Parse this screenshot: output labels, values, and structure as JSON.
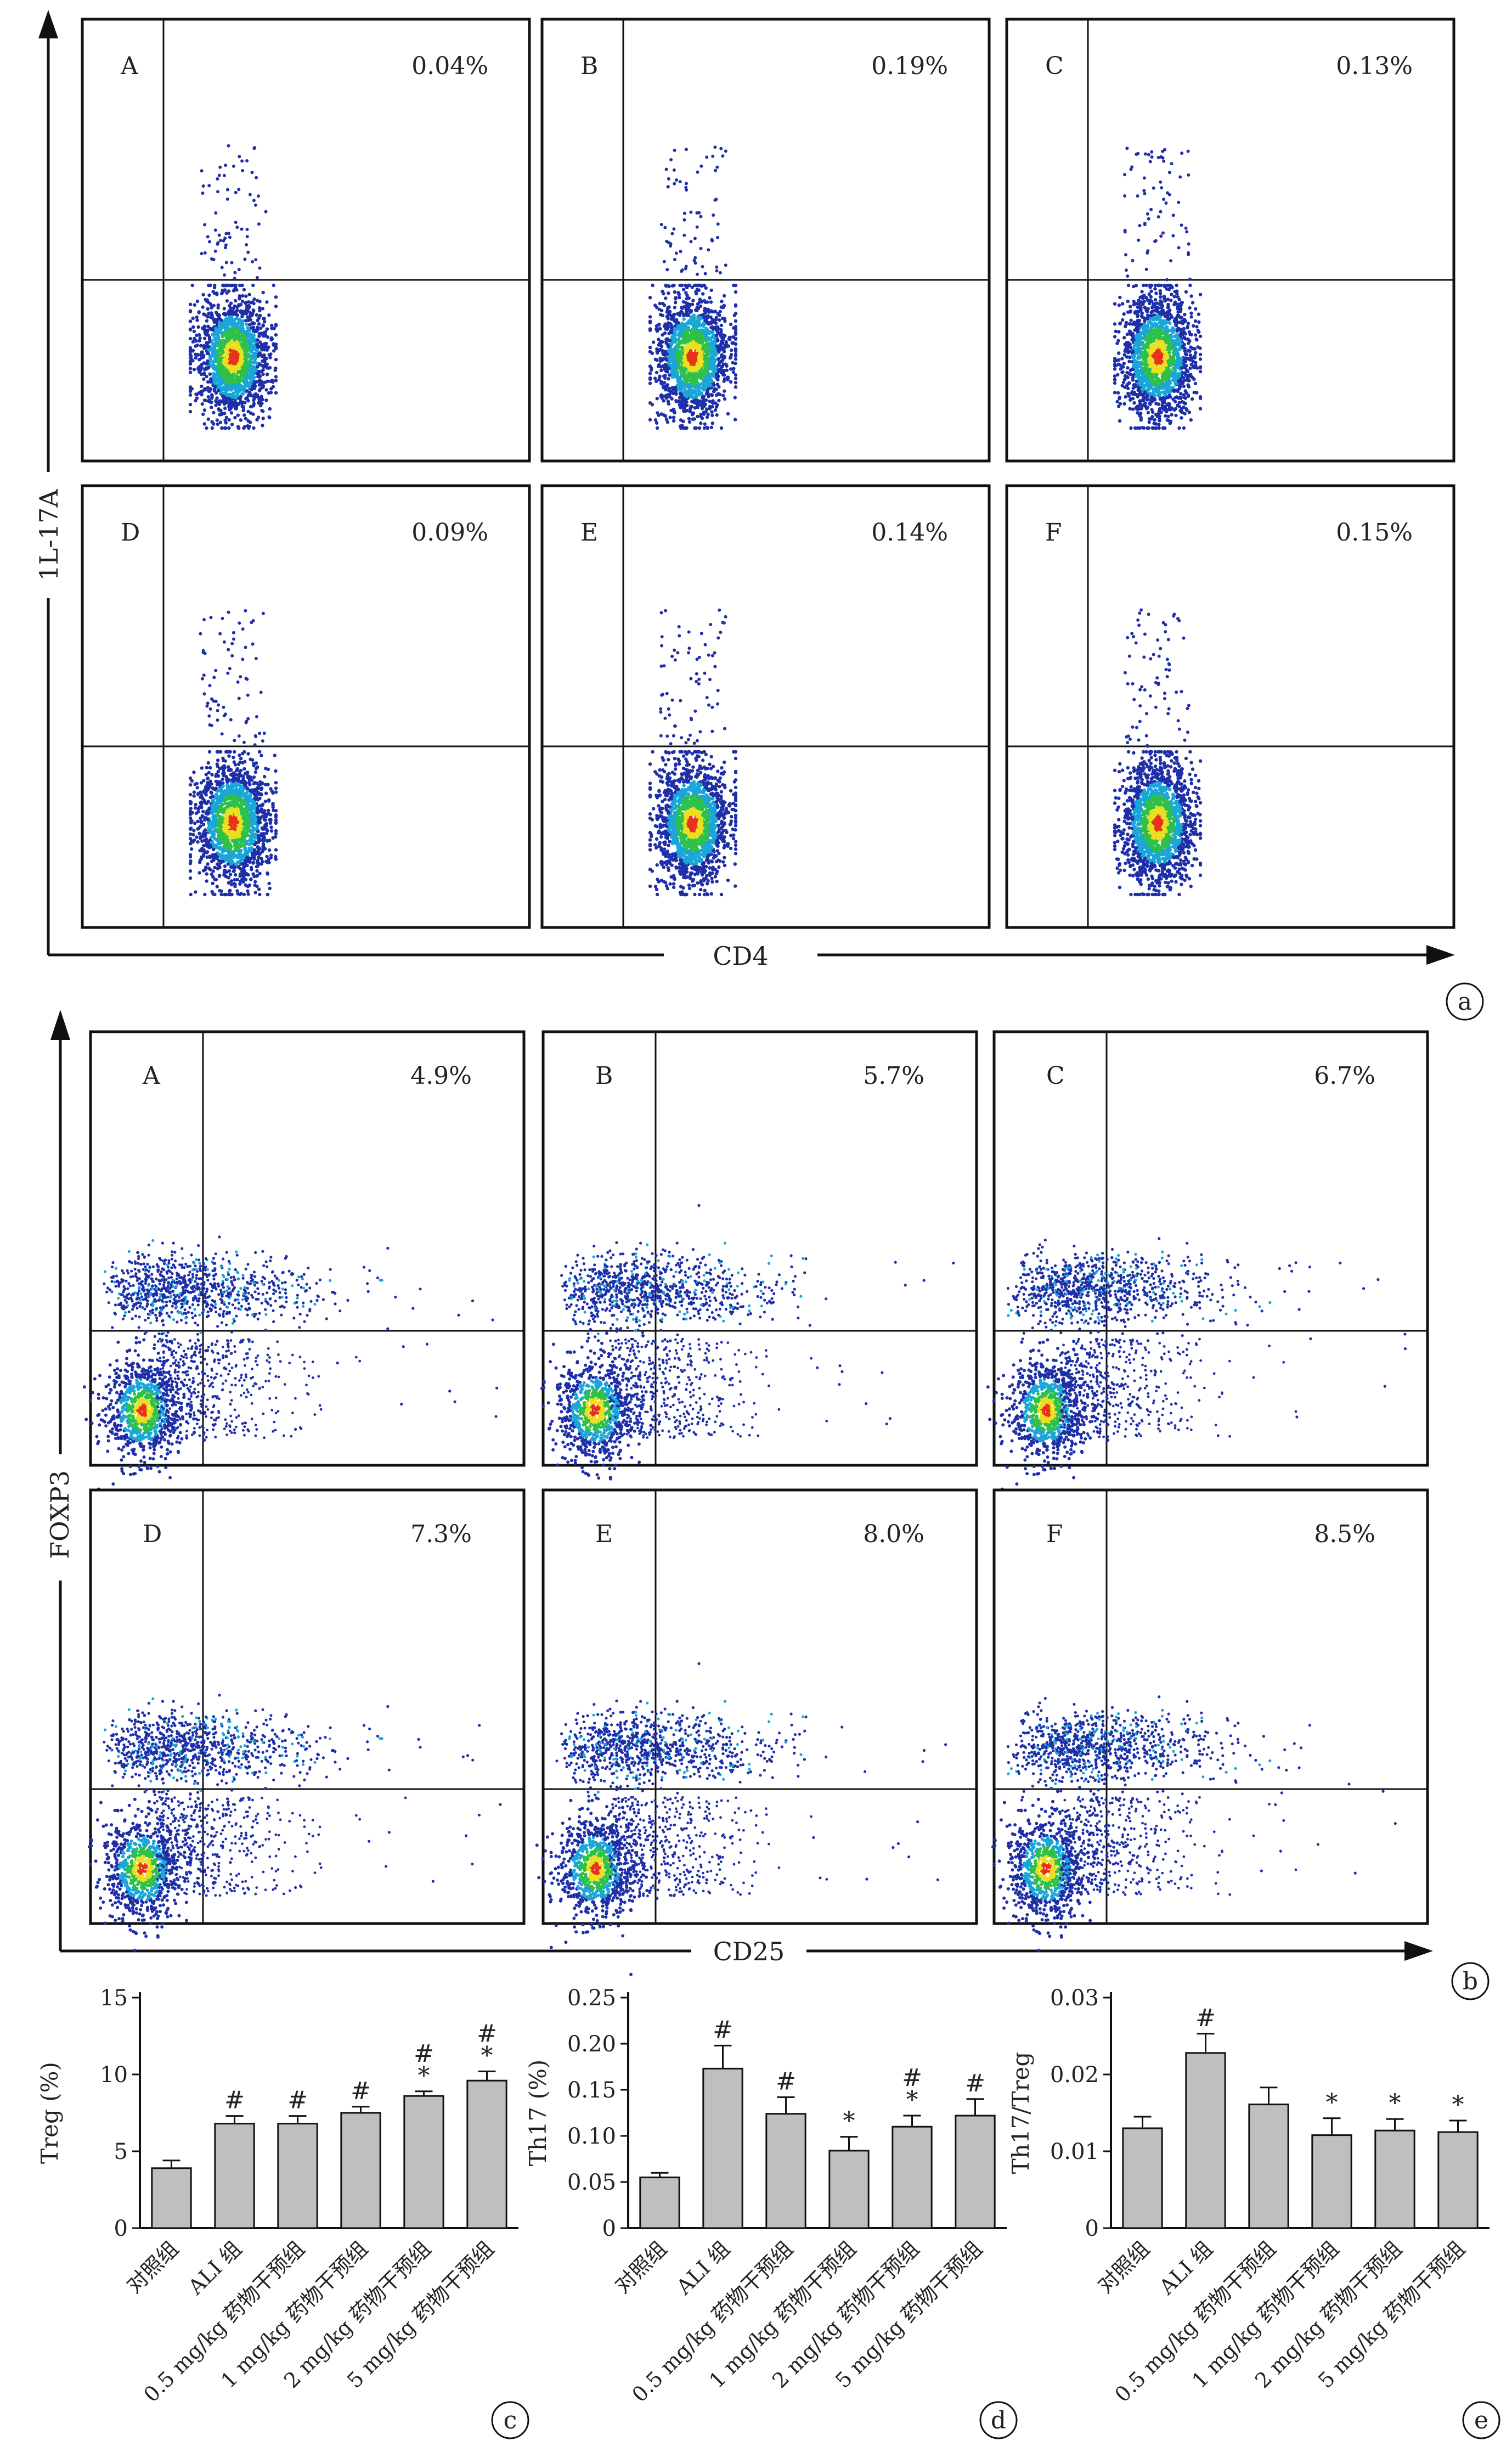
{
  "panel_a": {
    "xlabel": "CD4",
    "ylabel": "1L-17A",
    "tag": "a",
    "plots": [
      {
        "label": "A",
        "pct": "0.04%"
      },
      {
        "label": "B",
        "pct": "0.19%"
      },
      {
        "label": "C",
        "pct": "0.13%"
      },
      {
        "label": "D",
        "pct": "0.09%"
      },
      {
        "label": "E",
        "pct": "0.14%"
      },
      {
        "label": "F",
        "pct": "0.15%"
      }
    ]
  },
  "panel_b": {
    "xlabel": "CD25",
    "ylabel": "FOXP3",
    "tag": "b",
    "plots": [
      {
        "label": "A",
        "pct": "4.9%"
      },
      {
        "label": "B",
        "pct": "5.7%"
      },
      {
        "label": "C",
        "pct": "6.7%"
      },
      {
        "label": "D",
        "pct": "7.3%"
      },
      {
        "label": "E",
        "pct": "8.0%"
      },
      {
        "label": "F",
        "pct": "8.5%"
      }
    ]
  },
  "colors": {
    "dot_low": "#1f2fa8",
    "dot_mid1": "#1aa6d6",
    "dot_mid2": "#2ec04a",
    "dot_high1": "#e8e020",
    "dot_high2": "#e8321c",
    "bar": "#bfbfbf"
  },
  "chart_data": [
    {
      "type": "bar",
      "tag": "c",
      "ylabel": "Treg (%)",
      "ylim": [
        0,
        15
      ],
      "yticks": [
        "0",
        "5",
        "10",
        "15"
      ],
      "categories": [
        "对照组",
        "ALI 组",
        "0.5 mg/kg 药物干预组",
        "1 mg/kg 药物干预组",
        "2 mg/kg 药物干预组",
        "5 mg/kg 药物干预组"
      ],
      "values": [
        3.9,
        6.8,
        6.8,
        7.5,
        8.6,
        9.6
      ],
      "errors": [
        0.5,
        0.5,
        0.5,
        0.4,
        0.3,
        0.6
      ],
      "marks": [
        "",
        "#",
        "#",
        "#",
        "#\n*",
        "#\n*"
      ]
    },
    {
      "type": "bar",
      "tag": "d",
      "ylabel": "Th17 (%)",
      "ylim": [
        0,
        0.25
      ],
      "yticks": [
        "0",
        "0.05",
        "0.10",
        "0.15",
        "0.20",
        "0.25"
      ],
      "categories": [
        "对照组",
        "ALI 组",
        "0.5 mg/kg 药物干预组",
        "1 mg/kg 药物干预组",
        "2 mg/kg 药物干预组",
        "5 mg/kg 药物干预组"
      ],
      "values": [
        0.055,
        0.173,
        0.124,
        0.084,
        0.11,
        0.122
      ],
      "errors": [
        0.005,
        0.025,
        0.018,
        0.015,
        0.012,
        0.018
      ],
      "marks": [
        "",
        "#",
        "#",
        "*",
        "#\n*",
        "#"
      ]
    },
    {
      "type": "bar",
      "tag": "e",
      "ylabel": "Th17/Treg",
      "ylim": [
        0,
        0.03
      ],
      "yticks": [
        "0",
        "0.01",
        "0.02",
        "0.03"
      ],
      "categories": [
        "对照组",
        "ALI 组",
        "0.5 mg/kg 药物干预组",
        "1 mg/kg 药物干预组",
        "2 mg/kg 药物干预组",
        "5 mg/kg 药物干预组"
      ],
      "values": [
        0.013,
        0.0228,
        0.0161,
        0.0121,
        0.0127,
        0.0125
      ],
      "errors": [
        0.0015,
        0.0025,
        0.0022,
        0.0022,
        0.0015,
        0.0015
      ],
      "marks": [
        "",
        "#",
        "",
        "*",
        "*",
        "*"
      ]
    }
  ]
}
